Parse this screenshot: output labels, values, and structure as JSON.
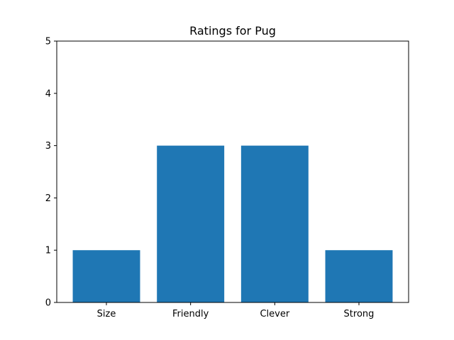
{
  "chart_data": {
    "type": "bar",
    "title": "Ratings for Pug",
    "categories": [
      "Size",
      "Friendly",
      "Clever",
      "Strong"
    ],
    "values": [
      1,
      3,
      3,
      1
    ],
    "ylim": [
      0,
      5
    ],
    "yticks": [
      0,
      1,
      2,
      3,
      4,
      5
    ],
    "xlabel": "",
    "ylabel": "",
    "grid": false,
    "bar_color": "#1f77b4"
  }
}
